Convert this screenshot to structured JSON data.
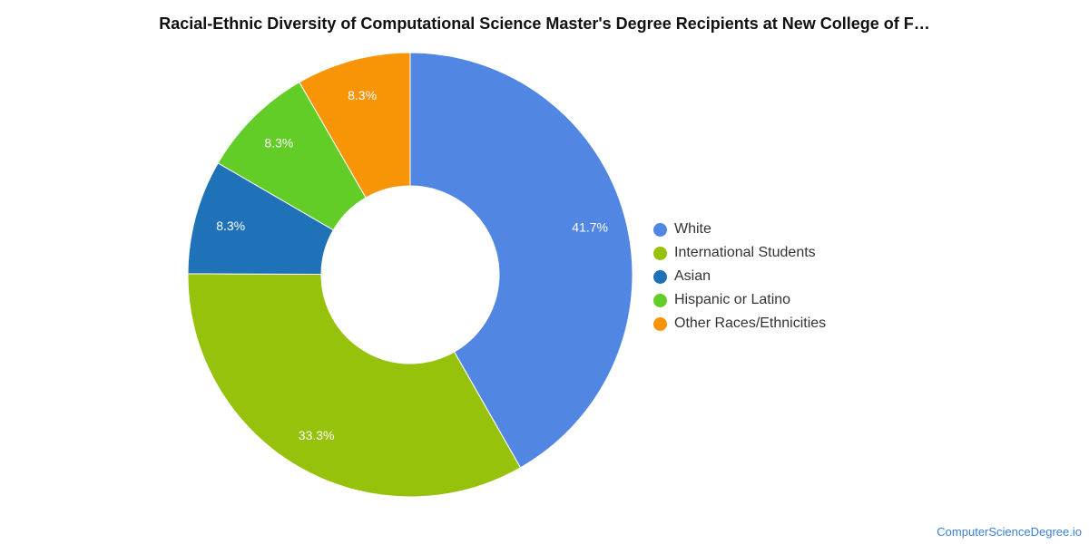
{
  "chart_data": {
    "type": "pie",
    "title": "Racial-Ethnic Diversity of Computational Science Master's Degree Recipients at New College of F…",
    "series": [
      {
        "name": "White",
        "value": 41.7,
        "label": "41.7%",
        "color": "#5286e3"
      },
      {
        "name": "International Students",
        "value": 33.3,
        "label": "33.3%",
        "color": "#97c20c"
      },
      {
        "name": "Asian",
        "value": 8.3,
        "label": "8.3%",
        "color": "#1f72b8"
      },
      {
        "name": "Hispanic or Latino",
        "value": 8.3,
        "label": "8.3%",
        "color": "#62cd27"
      },
      {
        "name": "Other Races/Ethnicities",
        "value": 8.3,
        "label": "8.3%",
        "color": "#f79506"
      }
    ],
    "donut": true,
    "legend_position": "right"
  },
  "footer": {
    "source": "ComputerScienceDegree.io"
  }
}
